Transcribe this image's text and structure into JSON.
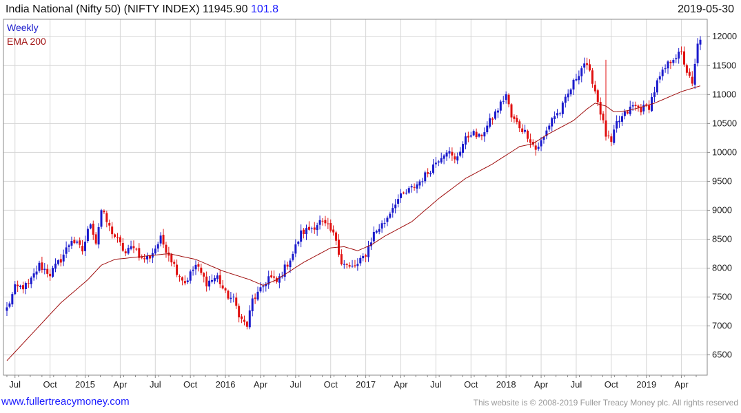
{
  "header": {
    "title_text": "India National (Nifty 50) (NIFTY INDEX) 11945.90",
    "change_text": "101.8",
    "date": "2019-05-30"
  },
  "footer": {
    "site": "www.fullertreacymoney.com",
    "copyright": "This website is © 2008-2019 Fuller Treacy Money plc. All rights reserved"
  },
  "colors": {
    "up": "#1a1acc",
    "down": "#e01010",
    "ema": "#a01010",
    "grid": "#d6d6d6",
    "frame": "#888888",
    "link": "#1a1aff"
  },
  "chart_data": {
    "type": "candlestick",
    "frequency_label": "Weekly",
    "ema_label": "EMA 200",
    "ylim": [
      6150,
      12300
    ],
    "y_ticks": [
      6500,
      7000,
      7500,
      8000,
      8500,
      9000,
      9500,
      10000,
      10500,
      11000,
      11500,
      12000
    ],
    "x_ticks": [
      {
        "label": "Jul",
        "week": 3
      },
      {
        "label": "Oct",
        "week": 16
      },
      {
        "label": "2015",
        "week": 29
      },
      {
        "label": "Apr",
        "week": 42
      },
      {
        "label": "Jul",
        "week": 55
      },
      {
        "label": "Oct",
        "week": 68
      },
      {
        "label": "2016",
        "week": 81
      },
      {
        "label": "Apr",
        "week": 94
      },
      {
        "label": "Jul",
        "week": 107
      },
      {
        "label": "Oct",
        "week": 120
      },
      {
        "label": "2017",
        "week": 133
      },
      {
        "label": "Apr",
        "week": 146
      },
      {
        "label": "Jul",
        "week": 159
      },
      {
        "label": "Oct",
        "week": 172
      },
      {
        "label": "2018",
        "week": 185
      },
      {
        "label": "Apr",
        "week": 198
      },
      {
        "label": "Jul",
        "week": 211
      },
      {
        "label": "Oct",
        "week": 224
      },
      {
        "label": "2019",
        "week": 237
      },
      {
        "label": "Apr",
        "week": 250
      }
    ],
    "week_count": 258,
    "close_anchors": [
      [
        0,
        7300
      ],
      [
        3,
        7650
      ],
      [
        8,
        7700
      ],
      [
        12,
        8050
      ],
      [
        16,
        7900
      ],
      [
        20,
        8150
      ],
      [
        24,
        8500
      ],
      [
        28,
        8300
      ],
      [
        31,
        8800
      ],
      [
        33,
        8450
      ],
      [
        35,
        9000
      ],
      [
        38,
        8700
      ],
      [
        42,
        8400
      ],
      [
        44,
        8250
      ],
      [
        47,
        8400
      ],
      [
        50,
        8150
      ],
      [
        53,
        8200
      ],
      [
        57,
        8500
      ],
      [
        60,
        8250
      ],
      [
        63,
        7950
      ],
      [
        66,
        7750
      ],
      [
        70,
        8050
      ],
      [
        74,
        7750
      ],
      [
        78,
        7850
      ],
      [
        81,
        7550
      ],
      [
        84,
        7450
      ],
      [
        87,
        7100
      ],
      [
        89,
        7000
      ],
      [
        91,
        7450
      ],
      [
        94,
        7600
      ],
      [
        97,
        7850
      ],
      [
        100,
        7750
      ],
      [
        103,
        8000
      ],
      [
        106,
        8250
      ],
      [
        109,
        8600
      ],
      [
        113,
        8700
      ],
      [
        116,
        8800
      ],
      [
        119,
        8700
      ],
      [
        122,
        8500
      ],
      [
        124,
        8100
      ],
      [
        127,
        8000
      ],
      [
        130,
        8050
      ],
      [
        133,
        8250
      ],
      [
        136,
        8600
      ],
      [
        140,
        8800
      ],
      [
        144,
        9150
      ],
      [
        148,
        9300
      ],
      [
        152,
        9450
      ],
      [
        156,
        9650
      ],
      [
        160,
        9900
      ],
      [
        163,
        10050
      ],
      [
        166,
        9850
      ],
      [
        169,
        10150
      ],
      [
        172,
        10350
      ],
      [
        175,
        10250
      ],
      [
        178,
        10450
      ],
      [
        182,
        10750
      ],
      [
        185,
        11000
      ],
      [
        187,
        10600
      ],
      [
        190,
        10450
      ],
      [
        193,
        10300
      ],
      [
        196,
        10050
      ],
      [
        199,
        10250
      ],
      [
        202,
        10600
      ],
      [
        205,
        10700
      ],
      [
        208,
        11000
      ],
      [
        211,
        11300
      ],
      [
        214,
        11550
      ],
      [
        217,
        11250
      ],
      [
        220,
        10700
      ],
      [
        222,
        10300
      ],
      [
        224,
        10150
      ],
      [
        226,
        10500
      ],
      [
        229,
        10650
      ],
      [
        232,
        10800
      ],
      [
        235,
        10750
      ],
      [
        238,
        10800
      ],
      [
        241,
        11200
      ],
      [
        244,
        11450
      ],
      [
        247,
        11650
      ],
      [
        250,
        11700
      ],
      [
        252,
        11400
      ],
      [
        254,
        11150
      ],
      [
        256,
        11850
      ],
      [
        257,
        11946
      ]
    ],
    "ema_anchors": [
      [
        0,
        6400
      ],
      [
        10,
        6900
      ],
      [
        20,
        7400
      ],
      [
        30,
        7800
      ],
      [
        35,
        8050
      ],
      [
        40,
        8150
      ],
      [
        50,
        8200
      ],
      [
        60,
        8250
      ],
      [
        70,
        8150
      ],
      [
        80,
        7950
      ],
      [
        90,
        7800
      ],
      [
        95,
        7700
      ],
      [
        100,
        7800
      ],
      [
        110,
        8100
      ],
      [
        120,
        8350
      ],
      [
        125,
        8370
      ],
      [
        130,
        8300
      ],
      [
        135,
        8400
      ],
      [
        140,
        8550
      ],
      [
        150,
        8800
      ],
      [
        160,
        9200
      ],
      [
        170,
        9550
      ],
      [
        180,
        9800
      ],
      [
        185,
        9950
      ],
      [
        190,
        10100
      ],
      [
        195,
        10150
      ],
      [
        200,
        10300
      ],
      [
        210,
        10550
      ],
      [
        215,
        10750
      ],
      [
        218,
        10850
      ],
      [
        222,
        10800
      ],
      [
        225,
        10700
      ],
      [
        230,
        10720
      ],
      [
        235,
        10780
      ],
      [
        240,
        10850
      ],
      [
        245,
        10950
      ],
      [
        250,
        11050
      ],
      [
        257,
        11150
      ]
    ]
  }
}
